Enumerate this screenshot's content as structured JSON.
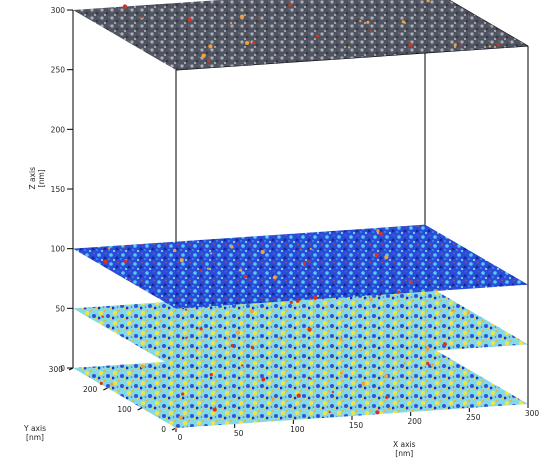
{
  "chart_data": {
    "type": "surface-3d",
    "title": "",
    "axes": {
      "x": {
        "label": "X axis",
        "unit": "[nm]",
        "range": [
          0,
          300
        ],
        "ticks": [
          "0",
          "50",
          "100",
          "150",
          "200",
          "250",
          "300"
        ]
      },
      "y": {
        "label": "Y axis",
        "unit": "[nm]",
        "range": [
          0,
          300
        ],
        "ticks": [
          "0",
          "100",
          "200",
          "300"
        ]
      },
      "z": {
        "label": "Z axis",
        "unit": "[nm]",
        "range": [
          0,
          300
        ],
        "ticks": [
          "0",
          "50",
          "100",
          "150",
          "200",
          "250",
          "300"
        ]
      }
    },
    "slices": [
      {
        "z": 0,
        "colormap": "jet",
        "dominant": "cyan-yellow with blue patches"
      },
      {
        "z": 50,
        "colormap": "jet",
        "dominant": "cyan-yellow with dark-blue patches"
      },
      {
        "z": 100,
        "colormap": "jet",
        "dominant": "blue with cyan and red specks"
      },
      {
        "z": 300,
        "colormap": "gray-copper",
        "dominant": "gray with red/orange specks"
      }
    ],
    "grid": false
  }
}
